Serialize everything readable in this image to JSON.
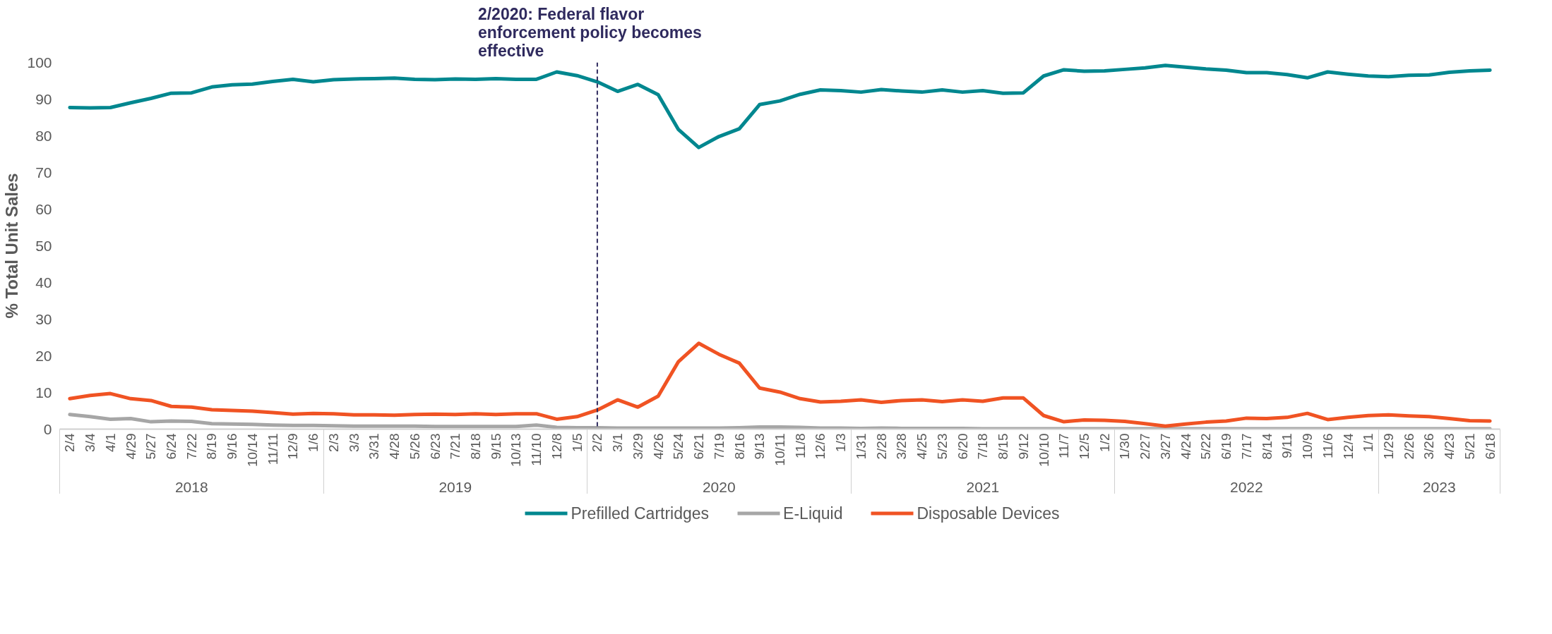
{
  "chart_data": {
    "type": "line",
    "ylabel": "% Total Unit Sales",
    "categories": [
      "2/4",
      "3/4",
      "4/1",
      "4/29",
      "5/27",
      "6/24",
      "7/22",
      "8/19",
      "9/16",
      "10/14",
      "11/11",
      "12/9",
      "1/6",
      "2/3",
      "3/3",
      "3/31",
      "4/28",
      "5/26",
      "6/23",
      "7/21",
      "8/18",
      "9/15",
      "10/13",
      "11/10",
      "12/8",
      "1/5",
      "2/2",
      "3/1",
      "3/29",
      "4/26",
      "5/24",
      "6/21",
      "7/19",
      "8/16",
      "9/13",
      "10/11",
      "11/8",
      "12/6",
      "1/3",
      "1/31",
      "2/28",
      "3/28",
      "4/25",
      "5/23",
      "6/20",
      "7/18",
      "8/15",
      "9/12",
      "10/10",
      "11/7",
      "12/5",
      "1/2",
      "1/30",
      "2/27",
      "3/27",
      "4/24",
      "5/22",
      "6/19",
      "7/17",
      "8/14",
      "9/11",
      "10/9",
      "11/6",
      "12/4",
      "1/1",
      "1/29",
      "2/26",
      "3/26",
      "4/23",
      "5/21",
      "6/18"
    ],
    "series": [
      {
        "name": "Prefilled Cartridges",
        "color": "#00878f",
        "values": [
          87.7,
          87.6,
          87.7,
          89.0,
          90.2,
          91.6,
          91.7,
          93.3,
          93.9,
          94.1,
          94.8,
          95.4,
          94.7,
          95.3,
          95.5,
          95.6,
          95.7,
          95.4,
          95.3,
          95.5,
          95.4,
          95.6,
          95.4,
          95.4,
          97.4,
          96.4,
          94.7,
          92.1,
          94.0,
          91.2,
          81.7,
          76.8,
          79.8,
          81.9,
          88.5,
          89.5,
          91.3,
          92.5,
          92.3,
          91.9,
          92.6,
          92.2,
          91.9,
          92.5,
          91.9,
          92.3,
          91.6,
          91.7,
          96.3,
          98.0,
          97.6,
          97.7,
          98.1,
          98.5,
          99.2,
          98.7,
          98.2,
          97.9,
          97.2,
          97.2,
          96.7,
          95.8,
          97.4,
          96.8,
          96.3,
          96.1,
          96.5,
          96.6,
          97.3,
          97.7,
          97.9
        ]
      },
      {
        "name": "E-Liquid",
        "color": "#a6a6a6",
        "values": [
          4.0,
          3.4,
          2.7,
          2.9,
          2.0,
          2.2,
          2.1,
          1.5,
          1.4,
          1.3,
          1.1,
          1.0,
          1.0,
          0.9,
          0.8,
          0.8,
          0.8,
          0.8,
          0.7,
          0.7,
          0.7,
          0.7,
          0.7,
          1.1,
          0.5,
          0.4,
          0.4,
          0.3,
          0.3,
          0.3,
          0.3,
          0.3,
          0.3,
          0.4,
          0.6,
          0.6,
          0.5,
          0.3,
          0.3,
          0.2,
          0.3,
          0.2,
          0.2,
          0.2,
          0.2,
          0.1,
          0.1,
          0.1,
          0.1,
          0.1,
          0.1,
          0.1,
          0.1,
          0.1,
          0.1,
          0.1,
          0.1,
          0.1,
          0.1,
          0.1,
          0.1,
          0.1,
          0.1,
          0.1,
          0.1,
          0.1,
          0.1,
          0.1,
          0.1,
          0.1,
          0.1
        ]
      },
      {
        "name": "Disposable Devices",
        "color": "#f05323",
        "values": [
          8.3,
          9.2,
          9.7,
          8.3,
          7.8,
          6.2,
          6.0,
          5.3,
          5.1,
          4.9,
          4.5,
          4.1,
          4.3,
          4.2,
          3.9,
          3.9,
          3.8,
          4.0,
          4.1,
          4.0,
          4.2,
          4.0,
          4.2,
          4.2,
          2.7,
          3.4,
          5.2,
          8.0,
          6.0,
          9.0,
          18.4,
          23.4,
          20.4,
          18.0,
          11.2,
          10.1,
          8.3,
          7.4,
          7.6,
          8.0,
          7.3,
          7.8,
          8.0,
          7.5,
          8.0,
          7.6,
          8.5,
          8.5,
          3.7,
          2.0,
          2.5,
          2.4,
          2.1,
          1.5,
          0.8,
          1.4,
          1.9,
          2.2,
          3.0,
          2.9,
          3.2,
          4.3,
          2.6,
          3.2,
          3.7,
          3.9,
          3.6,
          3.4,
          2.9,
          2.3,
          2.2
        ]
      }
    ],
    "ylim": [
      0,
      100
    ],
    "yticks": [
      0,
      10,
      20,
      30,
      40,
      50,
      60,
      70,
      80,
      90,
      100
    ],
    "grid": false,
    "legend": "bottom",
    "marker": "none",
    "line_style": "solid",
    "ref_lines": [
      {
        "axis": "x",
        "value": "2/2",
        "label": "2/2020: Federal flavor enforcement policy becomes effective",
        "color": "#2f2a5e",
        "line_style": "dashed"
      }
    ],
    "annotations": [
      "2018",
      "2019",
      "2020",
      "2021",
      "2022",
      "2023"
    ]
  }
}
